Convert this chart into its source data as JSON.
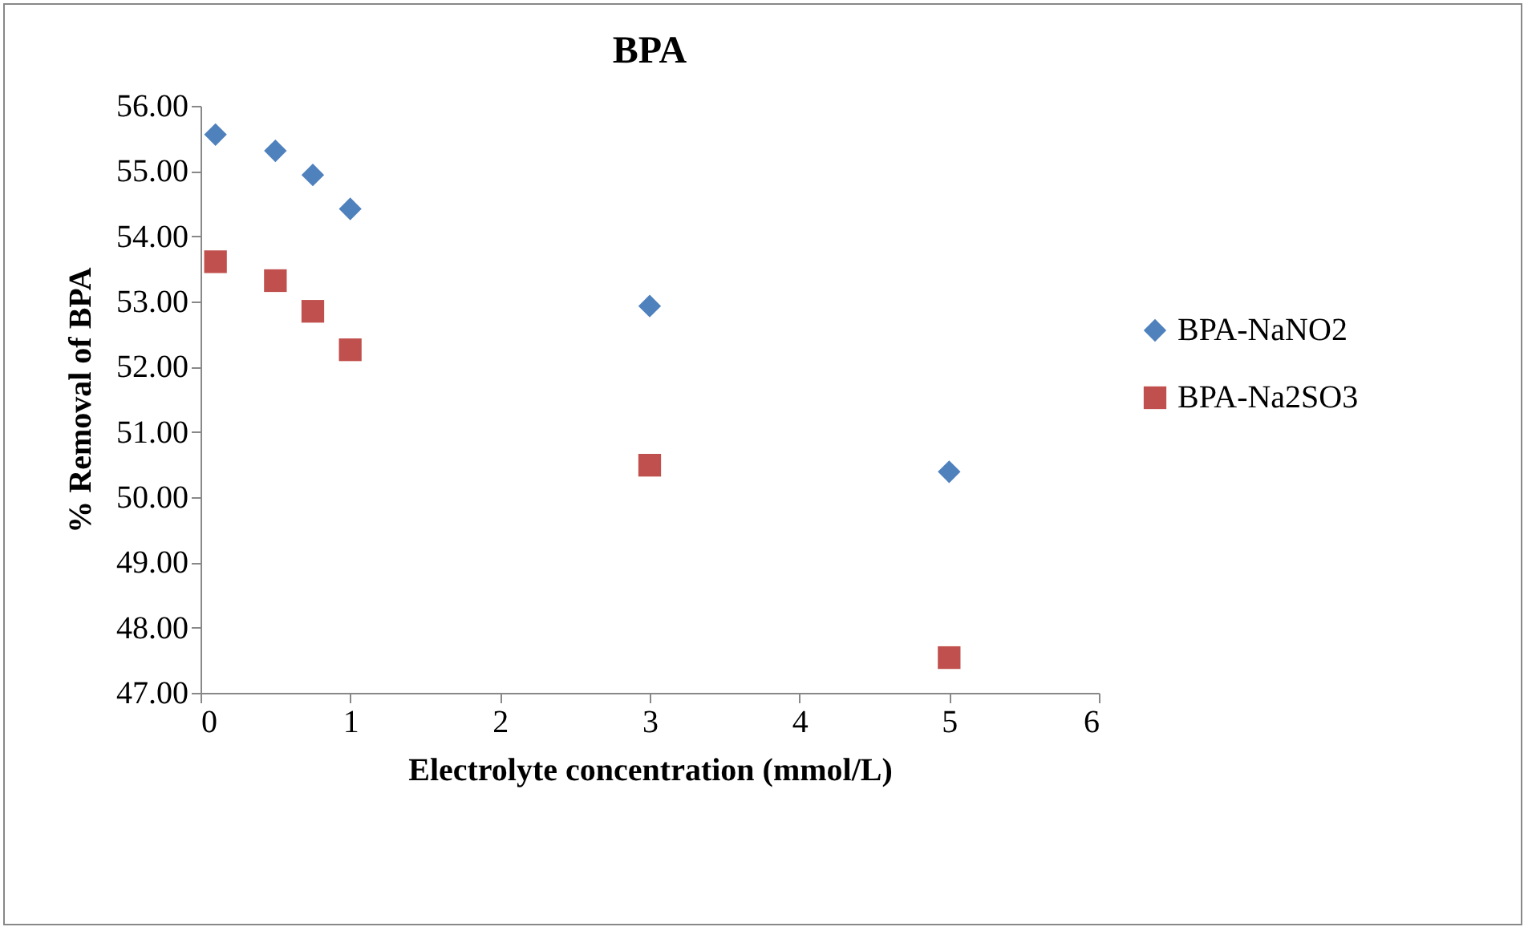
{
  "chart_data": {
    "type": "scatter",
    "title": "BPA",
    "xlabel": "Electrolyte concentration (mmol/L)",
    "ylabel": "% Removal of BPA",
    "x": [
      0.1,
      0.5,
      0.75,
      1,
      3,
      5
    ],
    "series": [
      {
        "name": "BPA-NaNO2",
        "color": "#4f81bd",
        "marker": "diamond",
        "values": [
          55.56,
          55.31,
          54.94,
          54.42,
          52.93,
          50.39
        ]
      },
      {
        "name": "BPA-Na2SO3",
        "color": "#c0504d",
        "marker": "square",
        "values": [
          53.61,
          53.32,
          52.85,
          52.26,
          50.49,
          47.54
        ]
      }
    ],
    "xlim": [
      0,
      6
    ],
    "xticks": [
      0,
      1,
      2,
      3,
      4,
      5,
      6
    ],
    "ylim": [
      47,
      56
    ],
    "yticks": [
      {
        "value": 47,
        "label": "47.00"
      },
      {
        "value": 48,
        "label": "48.00"
      },
      {
        "value": 49,
        "label": "49.00"
      },
      {
        "value": 50,
        "label": "50.00"
      },
      {
        "value": 51,
        "label": "51.00"
      },
      {
        "value": 52,
        "label": "52.00"
      },
      {
        "value": 53,
        "label": "53.00"
      },
      {
        "value": 54,
        "label": "54.00"
      },
      {
        "value": 55,
        "label": "55.00"
      },
      {
        "value": 56,
        "label": "56.00"
      }
    ],
    "grid": false,
    "legend": "right"
  }
}
